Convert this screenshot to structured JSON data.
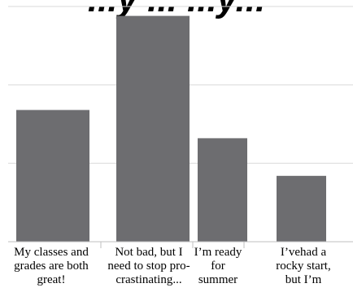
{
  "chart_data": {
    "type": "bar",
    "title": "...y ... ...y...",
    "categories": [
      "My classes and grades are both great!",
      "Not bad, but I need to stop procrastinating...",
      "I’m ready for summer",
      "I’vehad a rocky start, but I’m"
    ],
    "category_label_lines": [
      [
        "My classes and",
        "grades are both",
        "great!"
      ],
      [
        "Not bad, but I",
        "need to stop pro-",
        "crastinating..."
      ],
      [
        "I’m ready",
        "for",
        "summer"
      ],
      [
        "I’vehad a",
        "rocky start,",
        "but I’m"
      ]
    ],
    "values": [
      5.6,
      9.6,
      4.4,
      2.8
    ],
    "ylim": [
      0,
      10
    ],
    "yticks": [
      0,
      3.333,
      6.667,
      10
    ],
    "grid": true,
    "legend": "none",
    "xlabel": "",
    "ylabel": "",
    "colors": {
      "bar": "#6d6d70",
      "grid": "#d9d9d9",
      "axis": "#bfbfbf",
      "text": "#000000"
    }
  }
}
